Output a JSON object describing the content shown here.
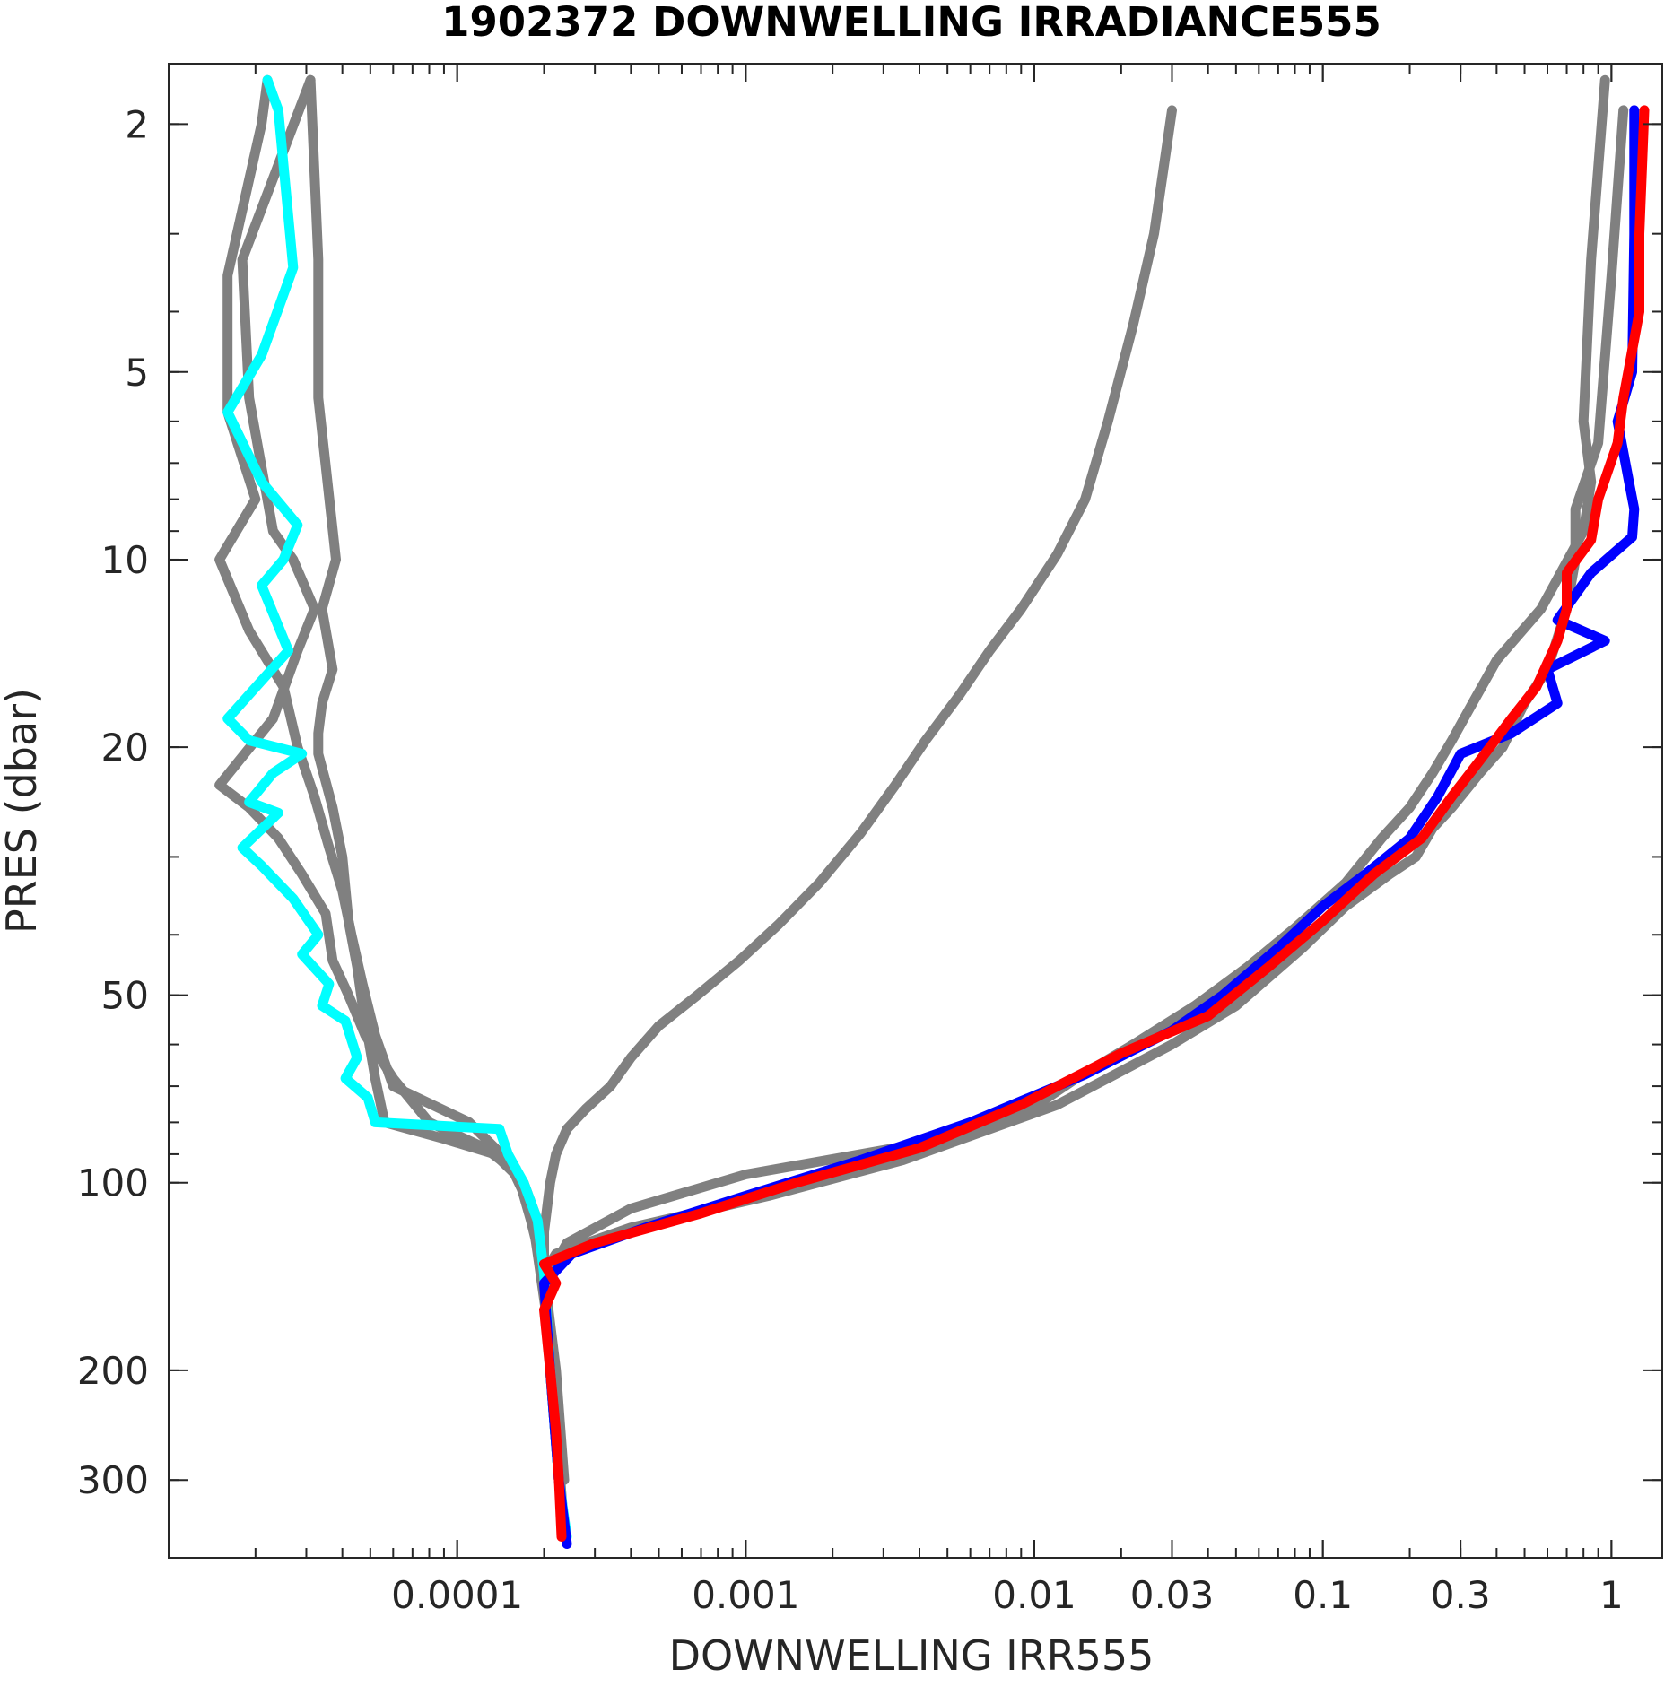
{
  "chart_data": {
    "type": "line",
    "title": "1902372  DOWNWELLING IRRADIANCE555",
    "xlabel": "DOWNWELLING IRR555",
    "ylabel": "PRES (dbar)",
    "xscale": "log",
    "yscale": "log",
    "yreversed": true,
    "xlim": [
      1e-05,
      1.5
    ],
    "ylim": [
      1.6,
      400
    ],
    "xticks": [
      {
        "value": 0.0001,
        "label": "0.0001"
      },
      {
        "value": 0.001,
        "label": "0.001"
      },
      {
        "value": 0.01,
        "label": "0.01"
      },
      {
        "value": 0.03,
        "label": "0.03"
      },
      {
        "value": 0.1,
        "label": "0.1"
      },
      {
        "value": 0.3,
        "label": "0.3"
      },
      {
        "value": 1,
        "label": "1"
      }
    ],
    "yticks": [
      {
        "value": 2,
        "label": "2"
      },
      {
        "value": 5,
        "label": "5"
      },
      {
        "value": 10,
        "label": "10"
      },
      {
        "value": 20,
        "label": "20"
      },
      {
        "value": 50,
        "label": "50"
      },
      {
        "value": 100,
        "label": "100"
      },
      {
        "value": 200,
        "label": "200"
      },
      {
        "value": 300,
        "label": "300"
      }
    ],
    "grid": false,
    "series": [
      {
        "color": "#808080",
        "points": [
          [
            3.1e-05,
            1.7
          ],
          [
            3.3e-05,
            3.3
          ],
          [
            3.3e-05,
            5.5
          ],
          [
            3.8e-05,
            10
          ],
          [
            3.4e-05,
            12
          ],
          [
            3.7e-05,
            15
          ],
          [
            3.4e-05,
            17
          ],
          [
            3.3e-05,
            19
          ],
          [
            3.3e-05,
            20.5
          ],
          [
            3.7e-05,
            25
          ],
          [
            4e-05,
            30
          ],
          [
            4.2e-05,
            38
          ],
          [
            4.5e-05,
            45
          ],
          [
            4.7e-05,
            52
          ],
          [
            4.9e-05,
            58
          ],
          [
            5.2e-05,
            68
          ],
          [
            5.6e-05,
            80
          ],
          [
            9e-05,
            85
          ],
          [
            0.000135,
            90
          ],
          [
            0.00017,
            100
          ],
          [
            0.00019,
            115
          ],
          [
            0.0002,
            140
          ],
          [
            0.00021,
            200
          ],
          [
            0.000225,
            300
          ],
          [
            0.000235,
            370
          ]
        ]
      },
      {
        "color": "#808080",
        "points": [
          [
            3.1e-05,
            1.7
          ],
          [
            1.8e-05,
            3.3
          ],
          [
            1.9e-05,
            5.5
          ],
          [
            2.3e-05,
            9
          ],
          [
            2.7e-05,
            10
          ],
          [
            3.2e-05,
            12
          ],
          [
            2.8e-05,
            14
          ],
          [
            2.3e-05,
            18
          ],
          [
            1.5e-05,
            23
          ],
          [
            1.9e-05,
            25
          ],
          [
            2.4e-05,
            28
          ],
          [
            2.9e-05,
            32
          ],
          [
            3.5e-05,
            37
          ],
          [
            3.7e-05,
            44
          ],
          [
            4.2e-05,
            50
          ],
          [
            4.8e-05,
            58
          ],
          [
            6e-05,
            68
          ],
          [
            8e-05,
            80
          ],
          [
            0.000125,
            88
          ],
          [
            0.000155,
            95
          ],
          [
            0.00018,
            110
          ],
          [
            0.00019,
            130
          ],
          [
            0.00021,
            180
          ],
          [
            0.000225,
            280
          ],
          [
            0.000235,
            360
          ]
        ]
      },
      {
        "color": "#808080",
        "points": [
          [
            2.2e-05,
            1.7
          ],
          [
            2.1e-05,
            2
          ],
          [
            1.6e-05,
            3.5
          ],
          [
            1.6e-05,
            5.8
          ],
          [
            2e-05,
            8
          ],
          [
            1.5e-05,
            10
          ],
          [
            1.9e-05,
            13
          ],
          [
            2.5e-05,
            16
          ],
          [
            2.8e-05,
            20
          ],
          [
            3.2e-05,
            24
          ],
          [
            3.6e-05,
            29
          ],
          [
            4e-05,
            34
          ],
          [
            4.3e-05,
            40
          ],
          [
            4.7e-05,
            48
          ],
          [
            5.2e-05,
            58
          ],
          [
            6e-05,
            70
          ],
          [
            0.00011,
            80
          ],
          [
            0.00016,
            95
          ],
          [
            0.00018,
            115
          ],
          [
            0.0002,
            140
          ],
          [
            0.00022,
            200
          ],
          [
            0.000235,
            300
          ]
        ]
      },
      {
        "color": "#808080",
        "points": [
          [
            0.03,
            1.9
          ],
          [
            0.026,
            3
          ],
          [
            0.022,
            4.2
          ],
          [
            0.018,
            6
          ],
          [
            0.015,
            8
          ],
          [
            0.012,
            9.8
          ],
          [
            0.009,
            12
          ],
          [
            0.007,
            14
          ],
          [
            0.0055,
            16.5
          ],
          [
            0.0042,
            19.5
          ],
          [
            0.0033,
            23
          ],
          [
            0.0025,
            27.5
          ],
          [
            0.0018,
            33
          ],
          [
            0.0013,
            38.5
          ],
          [
            0.00095,
            44
          ],
          [
            0.00068,
            50
          ],
          [
            0.0005,
            56
          ],
          [
            0.0004,
            63
          ],
          [
            0.00034,
            70
          ],
          [
            0.00028,
            76
          ],
          [
            0.00024,
            82
          ],
          [
            0.00022,
            90
          ],
          [
            0.00021,
            100
          ],
          [
            0.0002,
            120
          ],
          [
            0.0002,
            140
          ],
          [
            0.00021,
            200
          ],
          [
            0.000225,
            300
          ]
        ]
      },
      {
        "color": "#808080",
        "points": [
          [
            0.95,
            1.7
          ],
          [
            0.85,
            3.3
          ],
          [
            0.8,
            6
          ],
          [
            0.85,
            7.5
          ],
          [
            0.8,
            9
          ],
          [
            0.57,
            12
          ],
          [
            0.4,
            14.5
          ],
          [
            0.33,
            17
          ],
          [
            0.28,
            19.5
          ],
          [
            0.24,
            22
          ],
          [
            0.2,
            25
          ],
          [
            0.16,
            28
          ],
          [
            0.12,
            33
          ],
          [
            0.08,
            39
          ],
          [
            0.055,
            45
          ],
          [
            0.036,
            52
          ],
          [
            0.022,
            60
          ],
          [
            0.014,
            68
          ],
          [
            0.009,
            78
          ],
          [
            0.005,
            85
          ],
          [
            0.0025,
            90
          ],
          [
            0.001,
            97
          ],
          [
            0.0004,
            110
          ],
          [
            0.00024,
            125
          ],
          [
            0.0002,
            145
          ],
          [
            0.00021,
            200
          ],
          [
            0.000225,
            300
          ]
        ]
      },
      {
        "color": "#808080",
        "points": [
          [
            1.1,
            1.9
          ],
          [
            1.0,
            3.5
          ],
          [
            0.9,
            6.5
          ],
          [
            0.75,
            8.3
          ],
          [
            0.75,
            10
          ],
          [
            0.7,
            12
          ],
          [
            0.6,
            15
          ],
          [
            0.5,
            17
          ],
          [
            0.42,
            20
          ],
          [
            0.35,
            22
          ],
          [
            0.28,
            25
          ],
          [
            0.24,
            27
          ],
          [
            0.21,
            30
          ],
          [
            0.17,
            32
          ],
          [
            0.12,
            36
          ],
          [
            0.085,
            42
          ],
          [
            0.05,
            52
          ],
          [
            0.03,
            60
          ],
          [
            0.012,
            75
          ],
          [
            0.0035,
            92
          ],
          [
            0.0012,
            105
          ],
          [
            0.0004,
            118
          ],
          [
            0.00022,
            130
          ],
          [
            0.0002,
            140
          ],
          [
            0.00021,
            200
          ],
          [
            0.000225,
            300
          ]
        ]
      },
      {
        "color": "#00ffff",
        "points": [
          [
            2.2e-05,
            1.7
          ],
          [
            2.4e-05,
            1.9
          ],
          [
            2.7e-05,
            3.4
          ],
          [
            2.1e-05,
            4.7
          ],
          [
            1.6e-05,
            5.8
          ],
          [
            2.1e-05,
            7.5
          ],
          [
            2.8e-05,
            8.8
          ],
          [
            2.5e-05,
            10
          ],
          [
            2.1e-05,
            11
          ],
          [
            2.6e-05,
            14
          ],
          [
            1.6e-05,
            18
          ],
          [
            1.9e-05,
            19.5
          ],
          [
            2.9e-05,
            20.5
          ],
          [
            2.3e-05,
            22
          ],
          [
            1.9e-05,
            24.5
          ],
          [
            2.4e-05,
            25.5
          ],
          [
            1.8e-05,
            29
          ],
          [
            2.1e-05,
            31
          ],
          [
            2.7e-05,
            35
          ],
          [
            3.3e-05,
            40
          ],
          [
            2.9e-05,
            43
          ],
          [
            3.6e-05,
            48
          ],
          [
            3.4e-05,
            52
          ],
          [
            4.1e-05,
            55
          ],
          [
            4.5e-05,
            63
          ],
          [
            4.1e-05,
            68
          ],
          [
            4.9e-05,
            73
          ],
          [
            5.2e-05,
            80
          ],
          [
            0.00014,
            82
          ],
          [
            0.00015,
            90
          ],
          [
            0.00017,
            100
          ],
          [
            0.00019,
            115
          ],
          [
            0.0002,
            140
          ],
          [
            0.00021,
            200
          ],
          [
            0.000225,
            300
          ],
          [
            0.00024,
            370
          ]
        ]
      },
      {
        "color": "#0000ff",
        "points": [
          [
            1.2,
            1.9
          ],
          [
            1.2,
            3
          ],
          [
            1.18,
            5
          ],
          [
            1.05,
            6
          ],
          [
            1.15,
            7.5
          ],
          [
            1.2,
            8.3
          ],
          [
            1.18,
            9.2
          ],
          [
            0.85,
            10.5
          ],
          [
            0.65,
            12.5
          ],
          [
            0.95,
            13.5
          ],
          [
            0.6,
            15
          ],
          [
            0.65,
            17
          ],
          [
            0.45,
            19
          ],
          [
            0.3,
            20.5
          ],
          [
            0.25,
            24
          ],
          [
            0.2,
            28
          ],
          [
            0.14,
            32
          ],
          [
            0.1,
            36
          ],
          [
            0.07,
            42
          ],
          [
            0.045,
            50
          ],
          [
            0.03,
            57
          ],
          [
            0.015,
            67
          ],
          [
            0.006,
            80
          ],
          [
            0.0025,
            92
          ],
          [
            0.001,
            105
          ],
          [
            0.00045,
            118
          ],
          [
            0.00025,
            130
          ],
          [
            0.0002,
            145
          ],
          [
            0.00021,
            200
          ],
          [
            0.000225,
            300
          ],
          [
            0.00024,
            380
          ]
        ]
      },
      {
        "color": "#ff0000",
        "points": [
          [
            1.3,
            1.9
          ],
          [
            1.25,
            3
          ],
          [
            1.25,
            4
          ],
          [
            1.1,
            5.5
          ],
          [
            1.05,
            6.5
          ],
          [
            0.9,
            8
          ],
          [
            0.85,
            9.3
          ],
          [
            0.7,
            10.5
          ],
          [
            0.7,
            12
          ],
          [
            0.65,
            13.5
          ],
          [
            0.55,
            16
          ],
          [
            0.45,
            18
          ],
          [
            0.35,
            21
          ],
          [
            0.28,
            24
          ],
          [
            0.22,
            28
          ],
          [
            0.15,
            32
          ],
          [
            0.1,
            38
          ],
          [
            0.065,
            45
          ],
          [
            0.04,
            54
          ],
          [
            0.02,
            62
          ],
          [
            0.009,
            75
          ],
          [
            0.004,
            88
          ],
          [
            0.0015,
            100
          ],
          [
            0.0007,
            112
          ],
          [
            0.0003,
            125
          ],
          [
            0.0002,
            135
          ],
          [
            0.00022,
            145
          ],
          [
            0.0002,
            160
          ],
          [
            0.00021,
            200
          ],
          [
            0.00022,
            250
          ],
          [
            0.000225,
            300
          ],
          [
            0.00023,
            370
          ]
        ]
      }
    ]
  }
}
